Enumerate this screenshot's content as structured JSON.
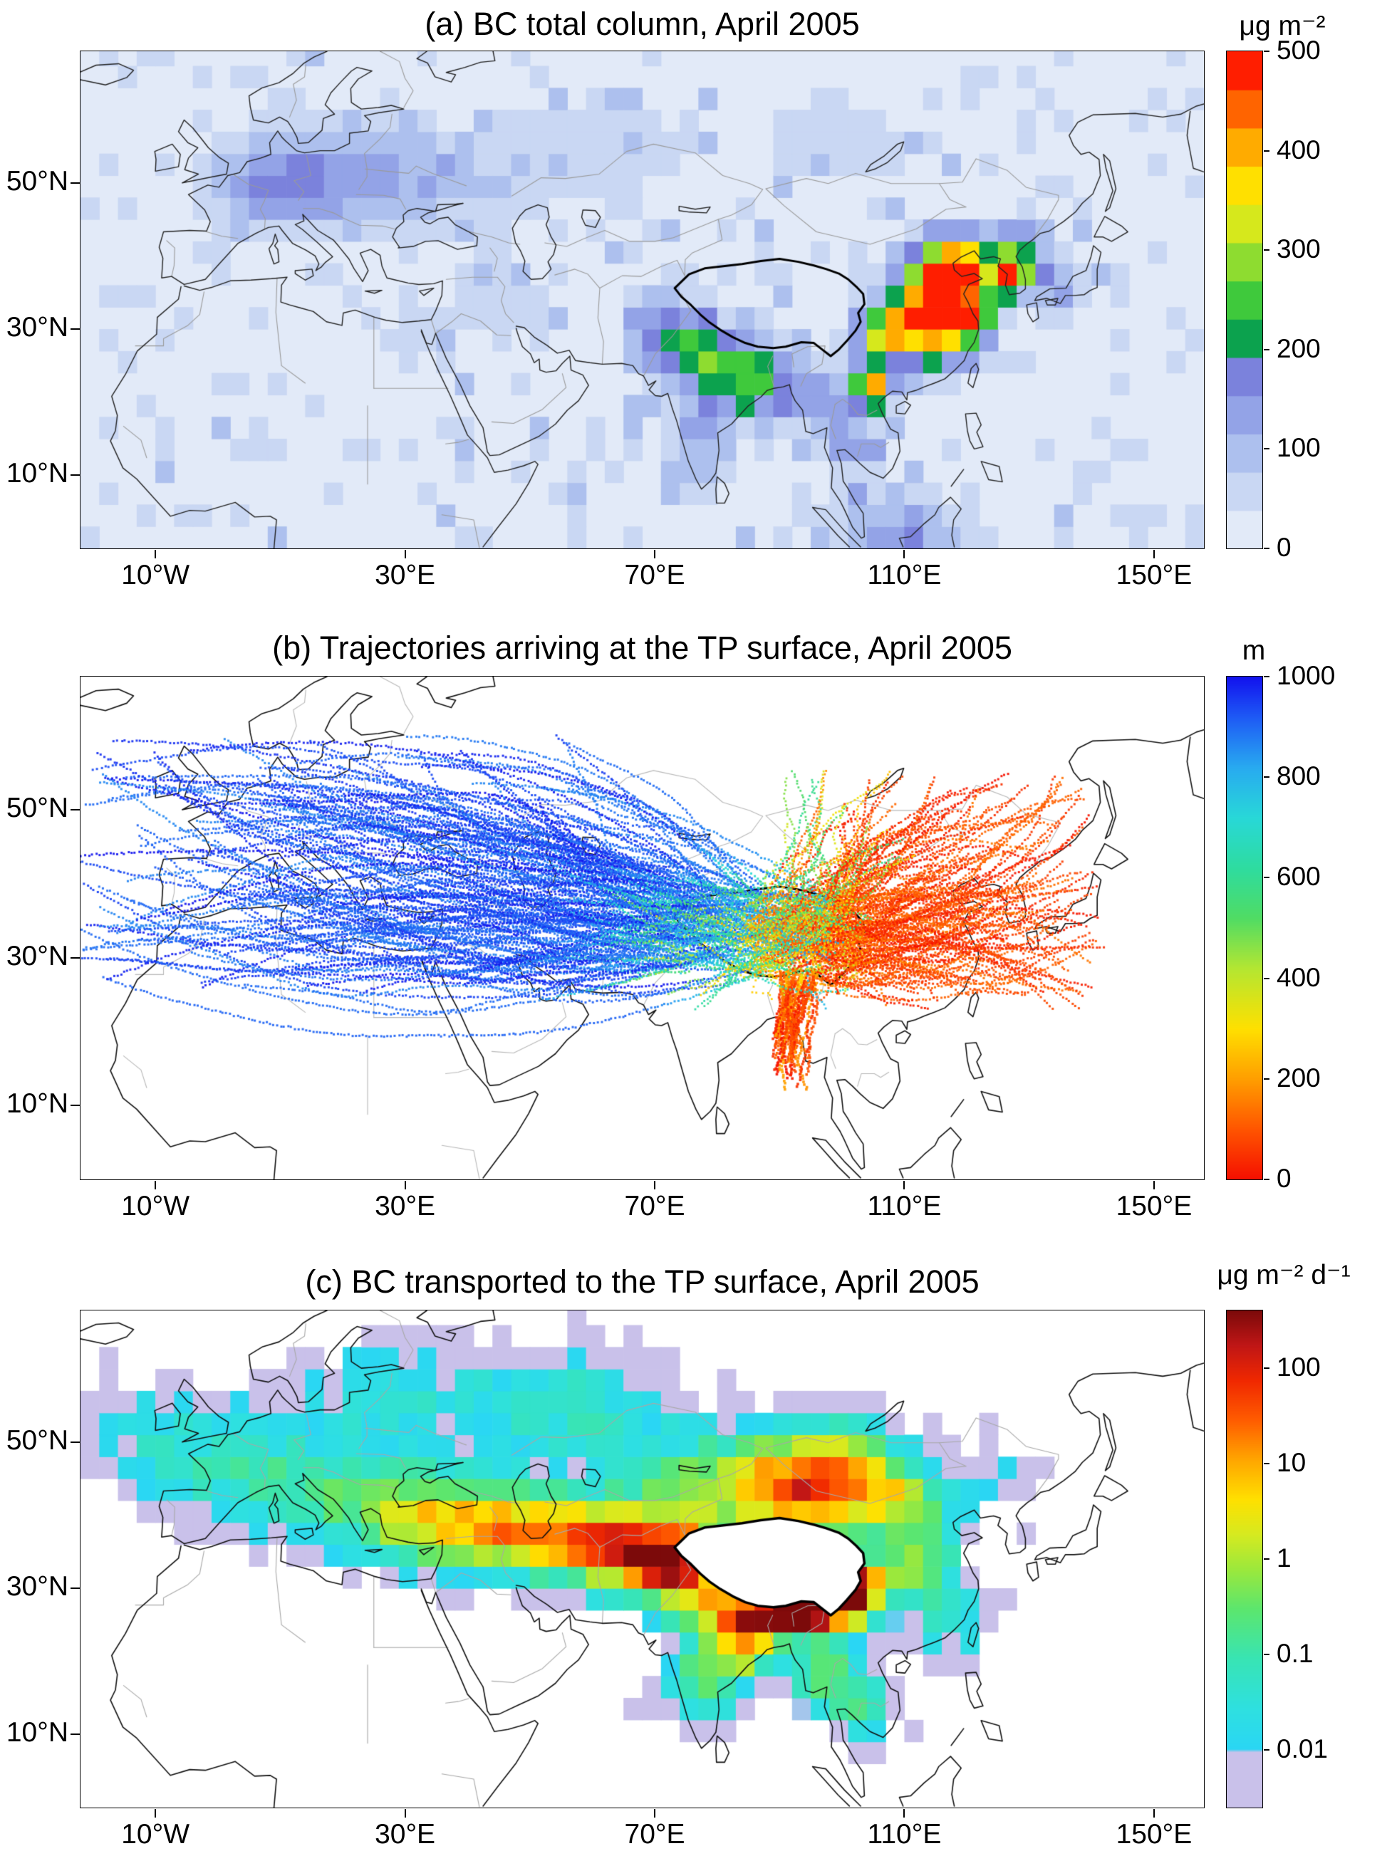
{
  "chart_data": [
    {
      "type": "heatmap",
      "title": "(a) BC total column, April 2005",
      "lon_range": [
        -22,
        158
      ],
      "lat_range": [
        0,
        68
      ],
      "x_tick_labels": [
        "10°W",
        "30°E",
        "70°E",
        "110°E",
        "150°E"
      ],
      "x_tick_lons": [
        -10,
        30,
        70,
        110,
        150
      ],
      "y_tick_labels": [
        "50°N",
        "30°N",
        "10°N"
      ],
      "y_tick_lats": [
        50,
        30,
        10
      ],
      "colorbar": {
        "unit": "μg m⁻²",
        "min": 0,
        "max": 500,
        "tick_values": [
          500,
          400,
          300,
          200,
          100,
          0
        ],
        "tick_labels": [
          "500",
          "400",
          "300",
          "200",
          "100",
          "0"
        ],
        "colors": [
          "#e2eaf8",
          "#c9d7f3",
          "#adc0ee",
          "#93a3e7",
          "#7b82dc",
          "#0ca24e",
          "#3fc93c",
          "#8edc30",
          "#d6e81c",
          "#ffe000",
          "#ffab00",
          "#ff6400",
          "#ff1e00"
        ]
      },
      "grid_deg": 3,
      "base": 15,
      "noise_amp": 240,
      "seed": 7,
      "hotspots": [
        {
          "lon": 8,
          "lat": 50,
          "sx": 7,
          "sy": 4.5,
          "amp": 130
        },
        {
          "lon": 22,
          "lat": 51,
          "sx": 8,
          "sy": 5,
          "amp": 100
        },
        {
          "lon": 38,
          "lat": 50,
          "sx": 9,
          "sy": 5,
          "amp": 60
        },
        {
          "lon": 60,
          "lat": 55,
          "sx": 10,
          "sy": 5,
          "amp": 55
        },
        {
          "lon": 100,
          "lat": 55,
          "sx": 12,
          "sy": 6,
          "amp": 35
        },
        {
          "lon": 45,
          "lat": 35,
          "sx": 6,
          "sy": 4,
          "amp": 45
        },
        {
          "lon": 31,
          "lat": 29,
          "sx": 3,
          "sy": 3,
          "amp": 60
        },
        {
          "lon": 72,
          "lat": 30,
          "sx": 4,
          "sy": 4,
          "amp": 140
        },
        {
          "lon": 79,
          "lat": 26,
          "sx": 6,
          "sy": 3.5,
          "amp": 150
        },
        {
          "lon": 86,
          "lat": 23,
          "sx": 4,
          "sy": 3.5,
          "amp": 170
        },
        {
          "lon": 77,
          "lat": 15,
          "sx": 4,
          "sy": 5,
          "amp": 110
        },
        {
          "lon": 96,
          "lat": 21,
          "sx": 3.5,
          "sy": 3,
          "amp": 140
        },
        {
          "lon": 104.8,
          "lat": 22.3,
          "sx": 2,
          "sy": 2,
          "amp": 400
        },
        {
          "lon": 106,
          "lat": 29.5,
          "sx": 3,
          "sy": 2.5,
          "amp": 240
        },
        {
          "lon": 113,
          "lat": 30,
          "sx": 4.5,
          "sy": 4,
          "amp": 260
        },
        {
          "lon": 116,
          "lat": 34.5,
          "sx": 4.5,
          "sy": 4.5,
          "amp": 380
        },
        {
          "lon": 119,
          "lat": 38.5,
          "sx": 3.5,
          "sy": 3,
          "amp": 300
        },
        {
          "lon": 121.5,
          "lat": 31.3,
          "sx": 2,
          "sy": 2,
          "amp": 220
        },
        {
          "lon": 126.8,
          "lat": 37.3,
          "sx": 1.8,
          "sy": 1.8,
          "amp": 470
        },
        {
          "lon": 129,
          "lat": 41,
          "sx": 3,
          "sy": 3,
          "amp": 150
        },
        {
          "lon": 135,
          "lat": 35.5,
          "sx": 3,
          "sy": 2.5,
          "amp": 120
        },
        {
          "lon": 101,
          "lat": 14.5,
          "sx": 3,
          "sy": 3,
          "amp": 120
        },
        {
          "lon": 105,
          "lat": 3,
          "sx": 6,
          "sy": 4,
          "amp": 90
        },
        {
          "lon": 114,
          "lat": 2,
          "sx": 5,
          "sy": 3,
          "amp": 70
        }
      ]
    },
    {
      "type": "trajectories",
      "title": "(b) Trajectories arriving at the TP surface, April 2005",
      "lon_range": [
        -22,
        158
      ],
      "lat_range": [
        0,
        68
      ],
      "x_tick_labels": [
        "10°W",
        "30°E",
        "70°E",
        "110°E",
        "150°E"
      ],
      "x_tick_lons": [
        -10,
        30,
        70,
        110,
        150
      ],
      "y_tick_labels": [
        "50°N",
        "30°N",
        "10°N"
      ],
      "y_tick_lats": [
        50,
        30,
        10
      ],
      "colorbar": {
        "unit": "m",
        "min": 0,
        "max": 1000,
        "tick_values": [
          1000,
          800,
          600,
          400,
          200,
          0
        ],
        "tick_labels": [
          "1000",
          "800",
          "600",
          "400",
          "200",
          "0"
        ],
        "stops": [
          [
            0,
            "#f50f00"
          ],
          [
            0.1,
            "#ff5500"
          ],
          [
            0.2,
            "#ff9e00"
          ],
          [
            0.3,
            "#ffe000"
          ],
          [
            0.42,
            "#b4e632"
          ],
          [
            0.52,
            "#50dc64"
          ],
          [
            0.62,
            "#2edca0"
          ],
          [
            0.72,
            "#28d8d8"
          ],
          [
            0.82,
            "#28aaf0"
          ],
          [
            0.92,
            "#1e5af5"
          ],
          [
            1,
            "#1212ee"
          ]
        ]
      },
      "seed": 11,
      "families": [
        {
          "name": "westerlies-high",
          "count": 190,
          "height_range": [
            860,
            1000
          ],
          "end_height_shift": -600,
          "start_box": {
            "lon": [
              -26,
              58
            ],
            "lat": [
              25,
              60
            ]
          },
          "end_box": {
            "lon": [
              70,
              99
            ],
            "lat": [
              28,
              39
            ]
          },
          "curve": 0.28,
          "wiggle": 15,
          "dot_r": 1.5,
          "spacing": 5
        },
        {
          "name": "east-asian-low",
          "count": 200,
          "height_range": [
            0,
            160
          ],
          "end_height_shift": 260,
          "start_box": {
            "lon": [
              96,
              142
            ],
            "lat": [
              23,
              55
            ]
          },
          "end_box": {
            "lon": [
              84,
              103
            ],
            "lat": [
              27,
              38
            ]
          },
          "curve": 0.3,
          "wiggle": 13,
          "dot_r": 1.5,
          "spacing": 5
        },
        {
          "name": "northeast-mid",
          "count": 25,
          "height_range": [
            180,
            620
          ],
          "end_height_shift": -150,
          "start_box": {
            "lon": [
              90,
              112
            ],
            "lat": [
              42,
              56
            ]
          },
          "end_box": {
            "lon": [
              85,
              100
            ],
            "lat": [
              30,
              39
            ]
          },
          "curve": 0.3,
          "wiggle": 14,
          "dot_r": 1.4,
          "spacing": 5
        },
        {
          "name": "bengal-plume",
          "count": 36,
          "height_range": [
            0,
            240
          ],
          "end_height_shift": 160,
          "start_box": {
            "lon": [
              88.5,
              94.5
            ],
            "lat": [
              12,
              20
            ]
          },
          "end_box": {
            "lon": [
              90,
              96
            ],
            "lat": [
              26,
              28.5
            ]
          },
          "curve": 0.12,
          "wiggle": 6,
          "dot_r": 1.8,
          "spacing": 4
        },
        {
          "name": "plateau-local-mid",
          "count": 60,
          "height_range": [
            220,
            860
          ],
          "end_height_shift": -100,
          "start_box": {
            "lon": [
              72,
              106
            ],
            "lat": [
              23,
              43
            ]
          },
          "end_box": {
            "lon": [
              77,
              101
            ],
            "lat": [
              28,
              38
            ]
          },
          "curve": 0.35,
          "wiggle": 16,
          "dot_r": 1.4,
          "spacing": 5
        }
      ]
    },
    {
      "type": "heatmap",
      "scale": "log10",
      "title": "(c) BC transported to the TP surface, April 2005",
      "lon_range": [
        -22,
        158
      ],
      "lat_range": [
        0,
        68
      ],
      "x_tick_labels": [
        "10°W",
        "30°E",
        "70°E",
        "110°E",
        "150°E"
      ],
      "x_tick_lons": [
        -10,
        30,
        70,
        110,
        150
      ],
      "y_tick_labels": [
        "50°N",
        "30°N",
        "10°N"
      ],
      "y_tick_lats": [
        50,
        30,
        10
      ],
      "colorbar": {
        "unit": "μg m⁻² d⁻¹",
        "scale": "log10",
        "log_min": -2.6,
        "log_max": 2.6,
        "tick_values": [
          100,
          10,
          1,
          0.1,
          0.01
        ],
        "tick_labels": [
          "100",
          "10",
          "1",
          "0.1",
          "0.01"
        ],
        "stops": [
          [
            0,
            "#c9c1ea"
          ],
          [
            0.112,
            "#c9c1ea"
          ],
          [
            0.118,
            "#2ad6f4"
          ],
          [
            0.2,
            "#2ee0e0"
          ],
          [
            0.3,
            "#38e4b4"
          ],
          [
            0.4,
            "#5ce66e"
          ],
          [
            0.48,
            "#9ce83c"
          ],
          [
            0.55,
            "#d6ea20"
          ],
          [
            0.62,
            "#ffe000"
          ],
          [
            0.7,
            "#ffa600"
          ],
          [
            0.78,
            "#ff5c00"
          ],
          [
            0.86,
            "#f02800"
          ],
          [
            0.93,
            "#c01616"
          ],
          [
            1,
            "#7c0a0a"
          ]
        ]
      },
      "grid_deg": 3,
      "base_log": -3,
      "threshold_log": -2.55,
      "noise_log": 0.35,
      "seed": 23,
      "mask_region": "tibetan-plateau",
      "hotspots": [
        {
          "lon": 101.5,
          "lat": 30,
          "sx": 3.5,
          "sy": 2.8,
          "amp": 5.0
        },
        {
          "lon": 95,
          "lat": 27.5,
          "sx": 5,
          "sy": 2.5,
          "amp": 4.2
        },
        {
          "lon": 86,
          "lat": 27,
          "sx": 8,
          "sy": 2.5,
          "amp": 4.0
        },
        {
          "lon": 74,
          "lat": 33,
          "sx": 5,
          "sy": 3.5,
          "amp": 3.8
        },
        {
          "lon": 66,
          "lat": 35,
          "sx": 7,
          "sy": 4,
          "amp": 3.2
        },
        {
          "lon": 55,
          "lat": 37,
          "sx": 9,
          "sy": 4.5,
          "amp": 2.8
        },
        {
          "lon": 42,
          "lat": 38.5,
          "sx": 9,
          "sy": 4.5,
          "amp": 2.4
        },
        {
          "lon": 30,
          "lat": 40,
          "sx": 9,
          "sy": 5,
          "amp": 2.0
        },
        {
          "lon": 15,
          "lat": 44,
          "sx": 10,
          "sy": 5,
          "amp": 1.6
        },
        {
          "lon": 0,
          "lat": 47,
          "sx": 9,
          "sy": 6,
          "amp": 1.2
        },
        {
          "lon": -12,
          "lat": 52,
          "sx": 8,
          "sy": 6,
          "amp": 1.0
        },
        {
          "lon": 80,
          "lat": 44,
          "sx": 10,
          "sy": 5,
          "amp": 2.6
        },
        {
          "lon": 95,
          "lat": 43,
          "sx": 8,
          "sy": 5,
          "amp": 2.8
        },
        {
          "lon": 100,
          "lat": 47,
          "sx": 8,
          "sy": 5,
          "amp": 2.0
        },
        {
          "lon": 112,
          "lat": 33,
          "sx": 5,
          "sy": 4,
          "amp": 2.6
        },
        {
          "lon": 110,
          "lat": 42,
          "sx": 6,
          "sy": 4,
          "amp": 2.0
        },
        {
          "lon": 78,
          "lat": 18,
          "sx": 5,
          "sy": 5,
          "amp": 2.2
        },
        {
          "lon": 85,
          "lat": 22,
          "sx": 4,
          "sy": 3,
          "amp": 2.6
        },
        {
          "lon": 97,
          "lat": 18,
          "sx": 4,
          "sy": 4,
          "amp": 2.4
        },
        {
          "lon": 104,
          "lat": 14,
          "sx": 4,
          "sy": 4,
          "amp": 1.6
        },
        {
          "lon": 55,
          "lat": 55,
          "sx": 14,
          "sy": 6,
          "amp": 1.8
        },
        {
          "lon": 25,
          "lat": 57,
          "sx": 10,
          "sy": 5,
          "amp": 1.3
        },
        {
          "lon": 118,
          "lat": 25,
          "sx": 5,
          "sy": 4,
          "amp": 1.4
        },
        {
          "lon": 125,
          "lat": 45,
          "sx": 5,
          "sy": 4,
          "amp": 1.0
        }
      ]
    }
  ]
}
